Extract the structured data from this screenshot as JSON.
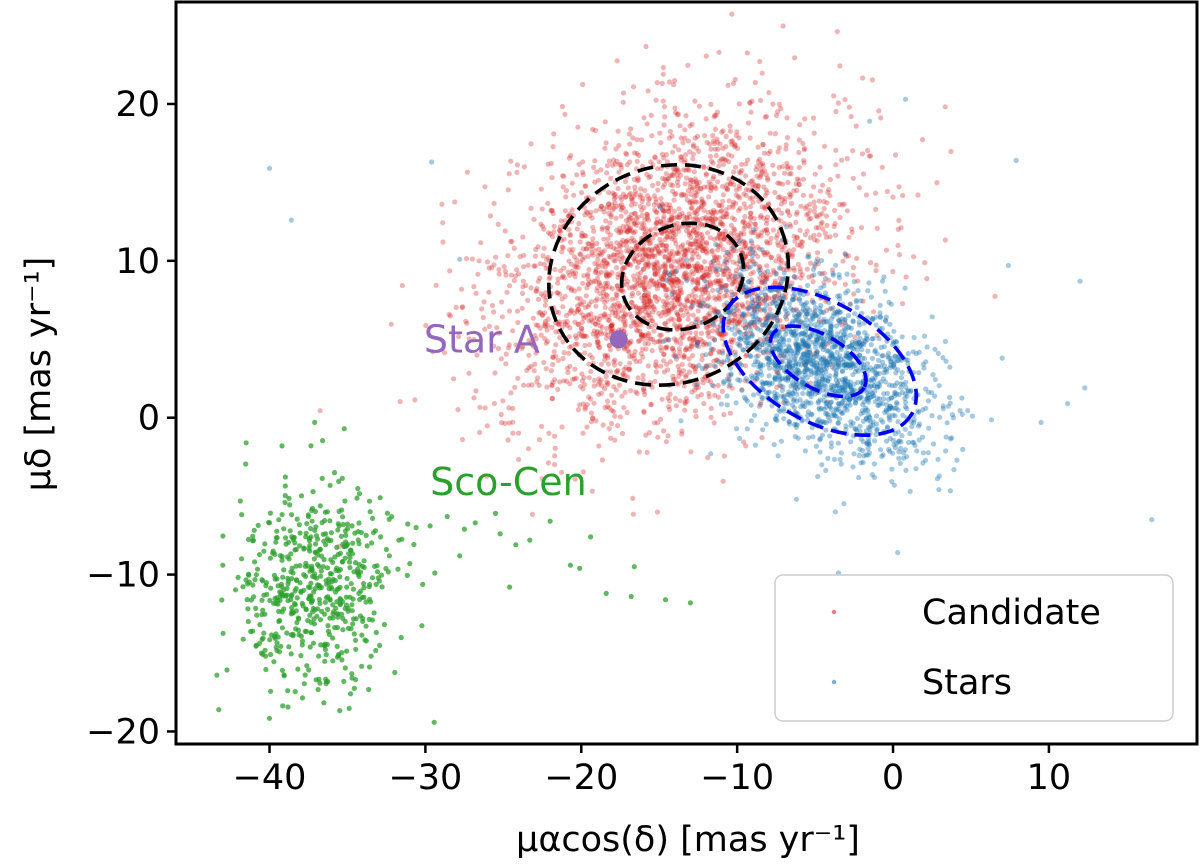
{
  "chart_data": {
    "type": "scatter",
    "xlabel": "μαcos(δ) [mas yr⁻¹]",
    "ylabel": "μδ [mas yr⁻¹]",
    "xlim": [
      -46,
      19.5
    ],
    "ylim": [
      -20.8,
      26.5
    ],
    "xticks": [
      -40,
      -30,
      -20,
      -10,
      0,
      10
    ],
    "yticks": [
      -20,
      -10,
      0,
      10,
      20
    ],
    "xtick_labels": [
      "−40",
      "−30",
      "−20",
      "−10",
      "0",
      "10"
    ],
    "ytick_labels": [
      "−20",
      "−10",
      "0",
      "10",
      "20"
    ],
    "grid": false,
    "legend": {
      "position": "bottom-right",
      "entries": [
        {
          "label": "Candidate",
          "color": "#d62728"
        },
        {
          "label": "Stars",
          "color": "#1f77b4"
        }
      ]
    },
    "series": [
      {
        "name": "Candidate",
        "color": "#d62728",
        "opacity": 0.35,
        "n_points": 3000,
        "center": [
          -14,
          9.5
        ],
        "spread": [
          5.5,
          4.8
        ],
        "correlation": 0.25,
        "in_legend": true
      },
      {
        "name": "Stars",
        "color": "#1f77b4",
        "opacity": 0.4,
        "n_points": 1600,
        "center": [
          -4.5,
          3.5
        ],
        "spread": [
          3.5,
          2.8
        ],
        "correlation": -0.45,
        "in_legend": true
      },
      {
        "name": "Sco-Cen",
        "color": "#2ca02c",
        "opacity": 0.75,
        "n_points": 560,
        "center": [
          -37,
          -11
        ],
        "spread": [
          2.4,
          3.2
        ],
        "correlation": 0.0,
        "in_legend": false
      }
    ],
    "tail_points": {
      "Sco-Cen": [
        [
          -33.8,
          -7.5
        ],
        [
          -32.5,
          -8.4
        ],
        [
          -31.7,
          -7.8
        ],
        [
          -30.6,
          -7.0
        ],
        [
          -29.7,
          -6.9
        ],
        [
          -28.6,
          -6.3
        ],
        [
          -27.5,
          -7.1
        ],
        [
          -26.8,
          -6.7
        ],
        [
          -25.5,
          -6.1
        ],
        [
          -24.2,
          -8.1
        ],
        [
          -23.3,
          -7.8
        ],
        [
          -22.0,
          -6.6
        ],
        [
          -20.7,
          -9.4
        ],
        [
          -20.1,
          -9.6
        ],
        [
          -18.4,
          -11.2
        ],
        [
          -16.8,
          -11.4
        ],
        [
          -16.6,
          -9.5
        ],
        [
          -14.6,
          -11.6
        ],
        [
          -13.0,
          -11.8
        ],
        [
          -31.0,
          -9.3
        ],
        [
          -27.8,
          -8.8
        ],
        [
          -25.2,
          -7.4
        ],
        [
          -29.4,
          -9.9
        ],
        [
          -32.9,
          -5.1
        ],
        [
          -24.6,
          -10.8
        ],
        [
          -19.4,
          -7.6
        ],
        [
          -35.2,
          -0.7
        ],
        [
          -37.1,
          -0.3
        ],
        [
          -39.2,
          -1.8
        ],
        [
          -41.5,
          -1.6
        ],
        [
          -43.0,
          -9.4
        ]
      ],
      "Stars": [
        [
          -40.0,
          15.9
        ],
        [
          -38.6,
          12.6
        ],
        [
          -29.6,
          16.3
        ],
        [
          -27.8,
          10.1
        ],
        [
          0.8,
          20.3
        ],
        [
          3.4,
          3.6
        ],
        [
          5.1,
          0.1
        ],
        [
          7.4,
          9.7
        ],
        [
          7.9,
          16.4
        ],
        [
          9.5,
          -0.3
        ],
        [
          11.2,
          0.9
        ],
        [
          12.3,
          1.9
        ],
        [
          12.0,
          8.7
        ],
        [
          16.6,
          -6.5
        ],
        [
          0.3,
          -8.6
        ],
        [
          1.1,
          -4.7
        ],
        [
          -3.7,
          -6.0
        ],
        [
          -6.2,
          -5.2
        ],
        [
          -11.7,
          -2.3
        ],
        [
          -13.6,
          -0.2
        ],
        [
          2.1,
          0.6
        ],
        [
          7.0,
          3.8
        ],
        [
          4.1,
          -2.7
        ],
        [
          -1.5,
          18.9
        ],
        [
          -3.5,
          -9.9
        ]
      ]
    },
    "ellipses": [
      {
        "color": "#000000",
        "center": [
          -14.4,
          9.1
        ],
        "semi_axes": [
          7.8,
          6.9
        ],
        "angle_deg": 22
      },
      {
        "color": "#000000",
        "center": [
          -13.5,
          9.0
        ],
        "semi_axes": [
          4.0,
          3.3
        ],
        "angle_deg": 22
      },
      {
        "color": "#0000ee",
        "center": [
          -4.7,
          3.6
        ],
        "semi_axes": [
          6.8,
          3.8
        ],
        "angle_deg": -30
      },
      {
        "color": "#0000ee",
        "center": [
          -4.8,
          3.6
        ],
        "semi_axes": [
          3.4,
          1.7
        ],
        "angle_deg": -30
      }
    ],
    "annotations": [
      {
        "name": "star-a-label",
        "text": "Star A",
        "color": "#9467bd",
        "x": -30.1,
        "y": 5.0
      },
      {
        "name": "sco-cen-label",
        "text": "Sco-Cen",
        "color": "#2ca02c",
        "x": -29.7,
        "y": -4.1
      }
    ],
    "highlight_points": [
      {
        "name": "star-a-marker",
        "color": "#9467bd",
        "x": -17.6,
        "y": 5.0
      }
    ]
  }
}
